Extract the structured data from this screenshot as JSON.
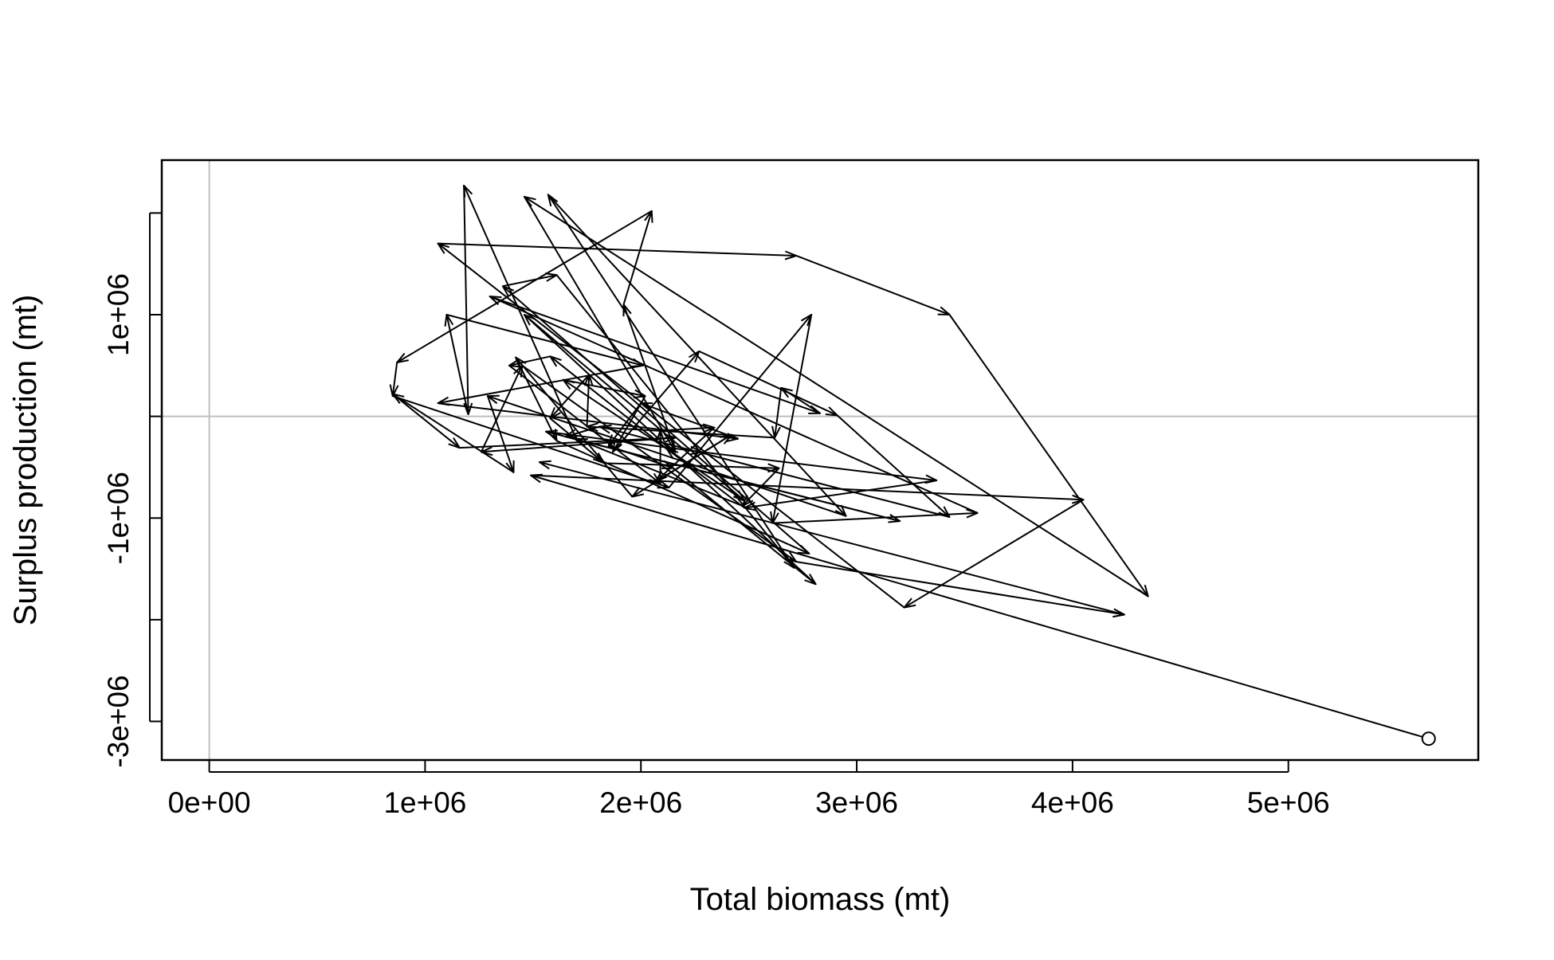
{
  "chart_data": {
    "type": "line",
    "title": "",
    "xlabel": "Total biomass (mt)",
    "ylabel": "Surplus production (mt)",
    "xlim": [
      -220000,
      5880000
    ],
    "ylim": [
      -3380000,
      2520000
    ],
    "x_ticks": [
      {
        "value": 0,
        "label": "0e+00"
      },
      {
        "value": 1000000,
        "label": "1e+06"
      },
      {
        "value": 2000000,
        "label": "2e+06"
      },
      {
        "value": 3000000,
        "label": "3e+06"
      },
      {
        "value": 4000000,
        "label": "4e+06"
      },
      {
        "value": 5000000,
        "label": "5e+06"
      }
    ],
    "y_ticks": [
      {
        "value": -3000000,
        "label": "-3e+06"
      },
      {
        "value": -2000000,
        "label": ""
      },
      {
        "value": -1000000,
        "label": "-1e+06"
      },
      {
        "value": 0,
        "label": ""
      },
      {
        "value": 1000000,
        "label": "1e+06"
      },
      {
        "value": 2000000,
        "label": ""
      }
    ],
    "reference_lines": {
      "x": 0,
      "y": 0,
      "color": "#bebebe"
    },
    "line_color": "#000000",
    "start_marker": "open-circle",
    "grid": false,
    "legend": "none",
    "series": [
      {
        "arrows": true,
        "points": [
          [
            5650000,
            -3170000
          ],
          [
            1490000,
            -580000
          ],
          [
            4050000,
            -820000
          ],
          [
            3220000,
            -1880000
          ],
          [
            1060000,
            1700000
          ],
          [
            2720000,
            1580000
          ],
          [
            3430000,
            1000000
          ],
          [
            4350000,
            -1770000
          ],
          [
            1460000,
            2160000
          ],
          [
            2160000,
            -350000
          ],
          [
            1920000,
            1100000
          ],
          [
            2050000,
            2020000
          ],
          [
            870000,
            530000
          ],
          [
            850000,
            200000
          ],
          [
            2130000,
            -700000
          ],
          [
            2790000,
            1000000
          ],
          [
            2610000,
            -1050000
          ],
          [
            3560000,
            -950000
          ],
          [
            1300000,
            1180000
          ],
          [
            2830000,
            30000
          ],
          [
            2650000,
            280000
          ],
          [
            2620000,
            -210000
          ],
          [
            1750000,
            -100000
          ],
          [
            1760000,
            410000
          ],
          [
            1580000,
            -20000
          ],
          [
            1830000,
            -460000
          ],
          [
            2640000,
            -510000
          ],
          [
            2470000,
            -880000
          ],
          [
            1700000,
            -220000
          ],
          [
            1180000,
            2270000
          ],
          [
            1200000,
            20000
          ],
          [
            1100000,
            1000000
          ],
          [
            2010000,
            500000
          ],
          [
            1060000,
            130000
          ],
          [
            2450000,
            -220000
          ],
          [
            2000000,
            130000
          ],
          [
            1850000,
            -290000
          ],
          [
            2150000,
            -510000
          ],
          [
            2810000,
            -1650000
          ],
          [
            1460000,
            1000000
          ],
          [
            2480000,
            -830000
          ],
          [
            1640000,
            360000
          ],
          [
            2020000,
            200000
          ],
          [
            1870000,
            -350000
          ],
          [
            2270000,
            640000
          ],
          [
            2910000,
            10000
          ],
          [
            3430000,
            -990000
          ],
          [
            1810000,
            -100000
          ],
          [
            1650000,
            -200000
          ],
          [
            3200000,
            -1030000
          ],
          [
            1560000,
            -150000
          ],
          [
            2280000,
            -350000
          ],
          [
            3370000,
            -630000
          ],
          [
            2480000,
            -900000
          ],
          [
            2120000,
            -320000
          ],
          [
            1580000,
            590000
          ],
          [
            1390000,
            500000
          ],
          [
            2090000,
            -660000
          ],
          [
            2090000,
            -140000
          ],
          [
            2340000,
            -110000
          ],
          [
            2070000,
            -640000
          ],
          [
            2420000,
            -180000
          ],
          [
            1960000,
            -790000
          ],
          [
            1420000,
            580000
          ],
          [
            1610000,
            -240000
          ],
          [
            2780000,
            -1350000
          ],
          [
            1360000,
            1280000
          ],
          [
            1610000,
            1390000
          ],
          [
            2710000,
            -1490000
          ],
          [
            1570000,
            2180000
          ],
          [
            2950000,
            -980000
          ],
          [
            1290000,
            200000
          ],
          [
            1410000,
            -550000
          ],
          [
            850000,
            220000
          ],
          [
            1160000,
            -310000
          ],
          [
            2160000,
            -210000
          ],
          [
            1260000,
            -350000
          ],
          [
            1450000,
            500000
          ],
          [
            2720000,
            -1430000
          ],
          [
            4240000,
            -1950000
          ],
          [
            1530000,
            -450000
          ]
        ]
      }
    ]
  }
}
